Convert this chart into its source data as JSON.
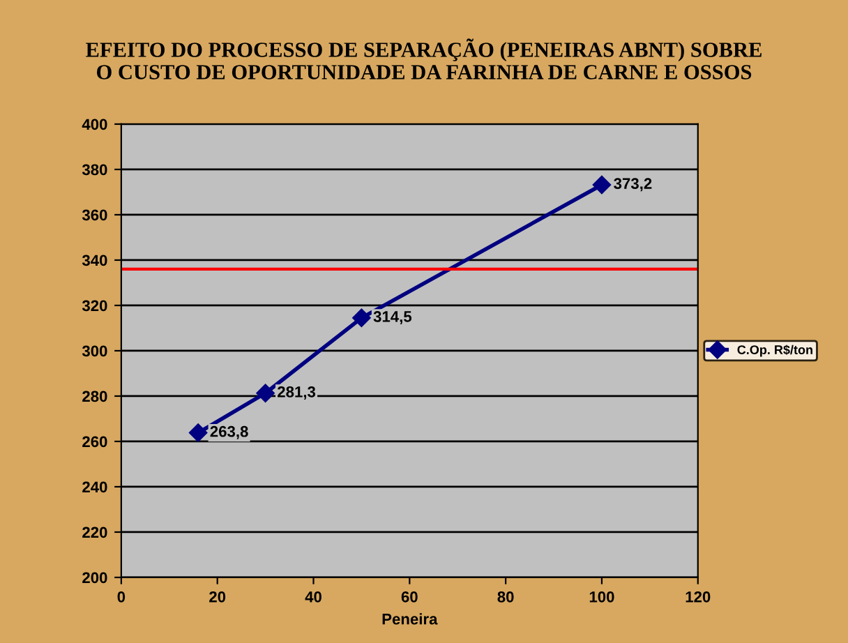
{
  "chart_data": {
    "type": "line",
    "title": "EFEITO DO PROCESSO DE SEPARAÇÃO (PENEIRAS ABNT) SOBRE\nO CUSTO DE OPORTUNIDADE DA FARINHA DE CARNE E OSSOS",
    "xlabel": "Peneira",
    "x": [
      16,
      30,
      50,
      100
    ],
    "series": [
      {
        "name": "C.Op. R$/ton",
        "color": "#000080",
        "values": [
          263.8,
          281.3,
          314.5,
          373.2
        ],
        "value_labels": [
          "263,8",
          "281,3",
          "314,5",
          "373,2"
        ]
      }
    ],
    "xlim": [
      0,
      120
    ],
    "xticks": [
      0,
      20,
      40,
      60,
      80,
      100,
      120
    ],
    "ylim": [
      200,
      400
    ],
    "yticks": [
      200,
      220,
      240,
      260,
      280,
      300,
      320,
      340,
      360,
      380,
      400
    ],
    "ref_lines": [
      {
        "axis": "y",
        "value": 336,
        "color": "#ff0000"
      }
    ],
    "grid": "y",
    "legend": "right",
    "marker": "diamond",
    "line_style": "solid"
  }
}
